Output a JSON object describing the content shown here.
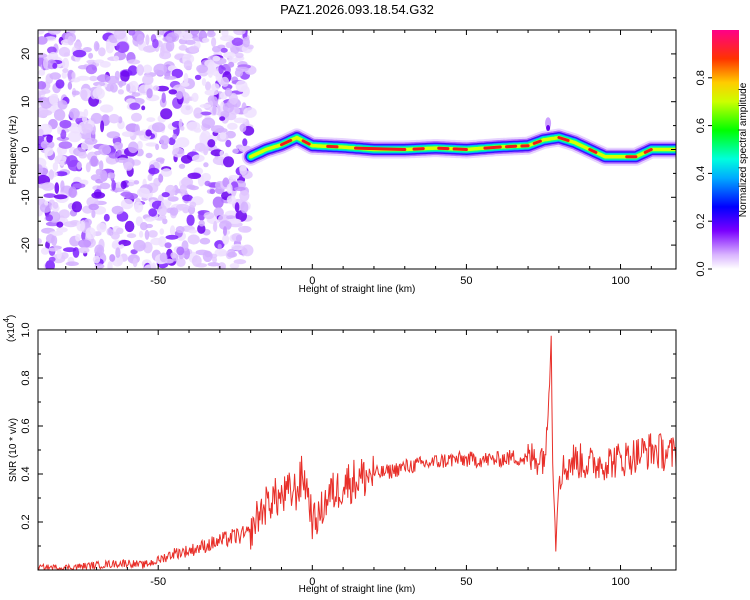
{
  "title": "PAZ1.2026.093.18.54.G32",
  "chart_data": [
    {
      "type": "heatmap",
      "name": "spectrogram",
      "xlabel": "Height of straight line (km)",
      "ylabel": "Frequency (Hz)",
      "xlim": [
        -89,
        118
      ],
      "ylim": [
        -25,
        25
      ],
      "xticks": [
        -50,
        0,
        50,
        100
      ],
      "xtick_labels": [
        "-50",
        "0",
        "50",
        "100"
      ],
      "yticks": [
        -20,
        -10,
        0,
        10,
        20
      ],
      "ytick_labels": [
        "-20",
        "-10",
        "0",
        "10",
        "20"
      ],
      "noise_region_x": [
        -89,
        -20
      ],
      "ridge": {
        "x": [
          -20,
          -15,
          -10,
          -5,
          0,
          10,
          20,
          30,
          40,
          50,
          60,
          70,
          75,
          80,
          85,
          90,
          95,
          100,
          105,
          110,
          118
        ],
        "y": [
          -1.5,
          0,
          1,
          2.5,
          0.8,
          0.5,
          0,
          0,
          0.3,
          0,
          0.5,
          0.8,
          2,
          2.5,
          1.5,
          0,
          -1.5,
          -1.5,
          -1.5,
          0,
          0
        ]
      },
      "colorbar": {
        "label": "Normalized spectral amplitude",
        "range": [
          0,
          1
        ],
        "ticks": [
          0.0,
          0.2,
          0.4,
          0.6,
          0.8
        ],
        "tick_labels": [
          "0.0",
          "0.2",
          "0.4",
          "0.6",
          "0.8"
        ]
      }
    },
    {
      "type": "line",
      "name": "snr",
      "xlabel": "Height of straight line (km)",
      "ylabel": "SNR (10 * v/v)",
      "scale_label": "(x10",
      "scale_exponent": "4",
      "scale_suffix": ")",
      "xlim": [
        -89,
        118
      ],
      "ylim": [
        0,
        1.0
      ],
      "xticks": [
        -50,
        0,
        50,
        100
      ],
      "xtick_labels": [
        "-50",
        "0",
        "50",
        "100"
      ],
      "yticks": [
        0.2,
        0.4,
        0.6,
        0.8,
        1.0
      ],
      "ytick_labels": [
        "0.2",
        "0.4",
        "0.6",
        "0.8",
        "1.0"
      ],
      "color": "#e8302a",
      "series": [
        {
          "name": "SNR",
          "x": [
            -89,
            -80,
            -70,
            -60,
            -55,
            -50,
            -45,
            -40,
            -35,
            -30,
            -25,
            -20,
            -18,
            -15,
            -13,
            -10,
            -8,
            -5,
            -3,
            -1,
            0,
            2,
            4,
            6,
            8,
            10,
            15,
            20,
            25,
            30,
            35,
            40,
            45,
            50,
            55,
            60,
            65,
            70,
            73,
            75,
            76,
            77,
            77.5,
            78,
            79,
            80,
            85,
            90,
            95,
            100,
            105,
            110,
            118
          ],
          "y": [
            0.01,
            0.01,
            0.02,
            0.03,
            0.02,
            0.04,
            0.07,
            0.08,
            0.1,
            0.12,
            0.14,
            0.15,
            0.22,
            0.27,
            0.3,
            0.3,
            0.32,
            0.33,
            0.4,
            0.3,
            0.2,
            0.22,
            0.28,
            0.32,
            0.33,
            0.36,
            0.38,
            0.4,
            0.41,
            0.43,
            0.44,
            0.45,
            0.46,
            0.46,
            0.46,
            0.46,
            0.47,
            0.46,
            0.47,
            0.48,
            0.52,
            0.8,
            1.0,
            0.45,
            0.1,
            0.4,
            0.46,
            0.44,
            0.45,
            0.46,
            0.48,
            0.5,
            0.48
          ]
        }
      ]
    }
  ]
}
